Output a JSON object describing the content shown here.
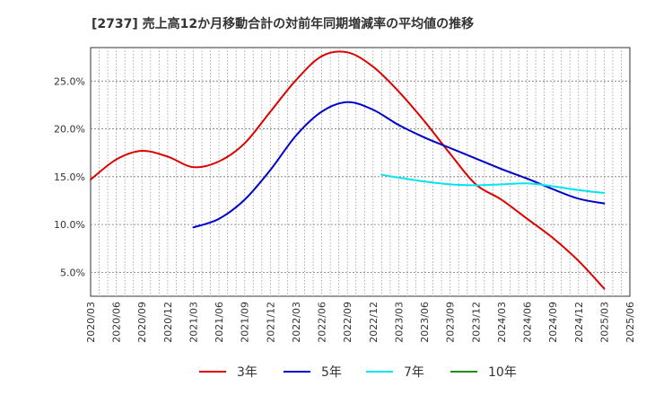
{
  "chart_data": {
    "type": "line",
    "title": "[2737]  売上高12か月移動合計の対前年同期増減率の平均値の推移",
    "xlabel": "",
    "ylabel": "",
    "x_ticks": [
      "2020/03",
      "2020/06",
      "2020/09",
      "2020/12",
      "2021/03",
      "2021/06",
      "2021/09",
      "2021/12",
      "2022/03",
      "2022/06",
      "2022/09",
      "2022/12",
      "2023/03",
      "2023/06",
      "2023/09",
      "2023/12",
      "2024/03",
      "2024/06",
      "2024/09",
      "2024/12",
      "2025/03",
      "2025/06"
    ],
    "y_ticks": [
      "5.0%",
      "10.0%",
      "15.0%",
      "20.0%",
      "25.0%"
    ],
    "y_tick_values": [
      5,
      10,
      15,
      20,
      25
    ],
    "ylim": [
      2.5,
      28.5
    ],
    "xlim": [
      "2020/03",
      "2025/06"
    ],
    "grid": true,
    "legend_position": "bottom",
    "series": [
      {
        "name": "3年",
        "color": "#dd0000",
        "x": [
          "2020/03",
          "2020/06",
          "2020/09",
          "2020/12",
          "2021/03",
          "2021/06",
          "2021/09",
          "2021/12",
          "2022/03",
          "2022/06",
          "2022/09",
          "2022/12",
          "2023/03",
          "2023/06",
          "2023/09",
          "2023/12",
          "2024/03",
          "2024/06",
          "2024/09",
          "2024/12",
          "2025/03"
        ],
        "values": [
          14.7,
          16.8,
          17.7,
          17.1,
          16.0,
          16.6,
          18.5,
          21.8,
          25.1,
          27.6,
          28.0,
          26.5,
          23.9,
          20.8,
          17.4,
          14.2,
          12.6,
          10.6,
          8.6,
          6.2,
          3.3
        ]
      },
      {
        "name": "5年",
        "color": "#0000cc",
        "x": [
          "2021/03",
          "2021/06",
          "2021/09",
          "2021/12",
          "2022/03",
          "2022/06",
          "2022/09",
          "2022/12",
          "2023/03",
          "2023/06",
          "2023/09",
          "2023/12",
          "2024/03",
          "2024/06",
          "2024/09",
          "2024/12",
          "2025/03"
        ],
        "values": [
          9.7,
          10.6,
          12.6,
          15.7,
          19.3,
          21.8,
          22.8,
          22.0,
          20.4,
          19.1,
          18.0,
          16.9,
          15.8,
          14.8,
          13.7,
          12.7,
          12.2
        ]
      },
      {
        "name": "7年",
        "color": "#00e5ee",
        "x": [
          "2023/01",
          "2023/03",
          "2023/06",
          "2023/09",
          "2023/12",
          "2024/03",
          "2024/06",
          "2024/09",
          "2024/12",
          "2025/03"
        ],
        "values": [
          15.2,
          14.9,
          14.5,
          14.2,
          14.1,
          14.2,
          14.3,
          14.0,
          13.6,
          13.3
        ]
      },
      {
        "name": "10年",
        "color": "#228b22",
        "x": [],
        "values": []
      }
    ]
  }
}
